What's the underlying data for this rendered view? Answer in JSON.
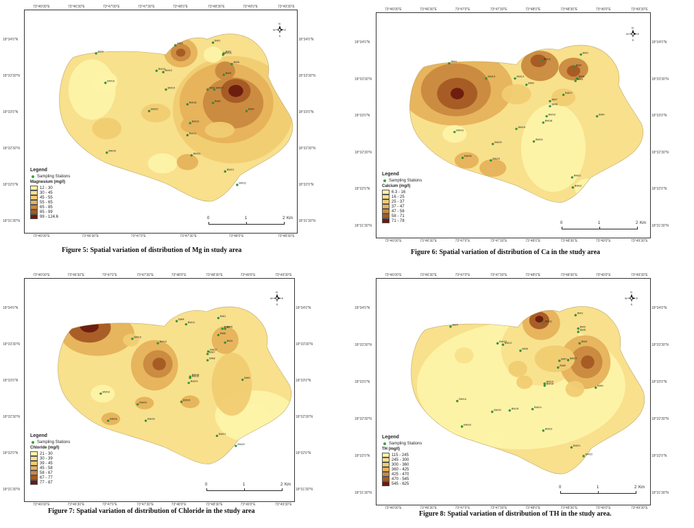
{
  "panels": [
    {
      "id": "mg",
      "caption": "Figure 5: Spatial variation of distribution of Mg in study area",
      "top_coords": [
        "73°46'00\"E",
        "73°46'30\"E",
        "73°47'00\"E",
        "73°47'30\"E",
        "73°48'0\"E",
        "73°48'30\"E",
        "73°49'0\"E",
        "73°49'30\"E"
      ],
      "bottom_coords": [
        "73°46'00\"E",
        "73°46'30\"E",
        "73°47'0\"E",
        "73°47'30\"E",
        "73°48'0\"E",
        "73°48'30\"E"
      ],
      "left_coords": [
        "18°34'0\"N",
        "18°33'30\"N",
        "18°33'0\"N",
        "18°32'30\"N",
        "18°32'0\"N",
        "18°31'30\"N"
      ],
      "right_coords": [
        "18°34'0\"N",
        "18°33'30\"N",
        "18°33'0\"N",
        "18°32'30\"N",
        "18°32'0\"N",
        "18°31'30\"N"
      ],
      "legend_title": "Legend",
      "stations_label": "Sampling Stations",
      "param_label": "Magnesium (mg/l)",
      "classes": [
        "12 - 30",
        "30 - 45",
        "45 - 55",
        "55 - 65",
        "65 - 85",
        "85 - 99",
        "99 - 124.6"
      ],
      "colors": [
        "#fdf3a8",
        "#f8e08c",
        "#f1cc72",
        "#e6b25b",
        "#c98a3f",
        "#a55a24",
        "#6a1a0e"
      ],
      "scale": [
        "0",
        "1",
        "2",
        "Km"
      ],
      "stations": [
        "BW4",
        "BW13",
        "BW16",
        "BW12",
        "BW10",
        "BW11",
        "BW27",
        "BW24",
        "BW5",
        "BW20",
        "BW26",
        "BW15",
        "BW6",
        "BW7",
        "BW18",
        "BW23",
        "BW21",
        "BW22",
        "BW1",
        "BW2",
        "BW3",
        "BW8",
        "BW9"
      ]
    },
    {
      "id": "ca",
      "caption": "Figure 6: Spatial variation of distribution of Ca in the study area",
      "top_coords": [
        "73°46'00\"E",
        "73°46'30\"E",
        "73°47'0\"E",
        "73°47'30\"E",
        "73°48'0\"E",
        "73°48'30\"E",
        "73°49'0\"E",
        "73°49'30\"E"
      ],
      "bottom_coords": [
        "73°46'00\"E",
        "73°46'30\"E",
        "73°47'0\"E",
        "73°47'30\"E",
        "73°48'0\"E",
        "73°48'30\"E",
        "73°49'0\"E",
        "73°49'30\"E"
      ],
      "left_coords": [
        "18°34'0\"N",
        "18°33'30\"N",
        "18°33'0\"N",
        "18°32'30\"N",
        "18°32'0\"N",
        "18°31'30\"N"
      ],
      "right_coords": [
        "18°34'0\"N",
        "18°33'30\"N",
        "18°33'0\"N",
        "18°32'30\"N",
        "18°32'0\"N",
        "18°31'30\"N"
      ],
      "legend_title": "Legend",
      "stations_label": "Sampling Stations",
      "param_label": "Calcium (mg/l)",
      "classes": [
        "6.3 - 16",
        "16 - 25",
        "25 - 37",
        "37 - 47",
        "47 - 58",
        "58 - 71",
        "71 - 78"
      ],
      "colors": [
        "#fdf3a8",
        "#f8e08c",
        "#f1cc72",
        "#e6b25b",
        "#c98a3f",
        "#a55a24",
        "#6a1a0e"
      ],
      "scale": [
        "0",
        "1",
        "2",
        "Km"
      ],
      "stations": [
        "BW4",
        "BW13",
        "BW16",
        "BW12",
        "BW10",
        "BW11",
        "BW27",
        "BW24",
        "BW5",
        "BW20",
        "BW26",
        "BW15",
        "BW6",
        "BW7",
        "BW18",
        "BW23",
        "BW21",
        "BW22",
        "BW1",
        "BW2",
        "BW3",
        "BW8",
        "BW9"
      ]
    },
    {
      "id": "cl",
      "caption": "Figure 7: Spatial variation of distribution of Chloride in the study area",
      "top_coords": [
        "73°46'00\"E",
        "73°46'30\"E",
        "73°47'0\"E",
        "73°47'30\"E",
        "73°48'0\"E",
        "73°48'30\"E",
        "73°49'0\"E",
        "73°49'30\"E"
      ],
      "bottom_coords": [
        "73°46'00\"E",
        "73°46'30\"E",
        "73°47'0\"E",
        "73°47'30\"E",
        "73°48'0\"E",
        "73°48'30\"E",
        "73°49'0\"E",
        "73°49'30\"E"
      ],
      "left_coords": [
        "18°34'0\"N",
        "18°33'30\"N",
        "18°33'0\"N",
        "18°32'30\"N",
        "18°32'0\"N",
        "18°31'30\"N"
      ],
      "right_coords": [
        "18°34'0\"N",
        "18°33'30\"N",
        "18°33'0\"N",
        "18°32'30\"N",
        "18°32'0\"N",
        "18°31'30\"N"
      ],
      "legend_title": "Legend",
      "stations_label": "Sampling Stations",
      "param_label": "Chloride (mg/l)",
      "classes": [
        "21 - 30",
        "30 - 39",
        "39 - 45",
        "45 - 58",
        "58 - 67",
        "67 - 77",
        "77 - 87"
      ],
      "colors": [
        "#fdf3a8",
        "#f8e08c",
        "#f1cc72",
        "#e6b25b",
        "#c98a3f",
        "#a55a24",
        "#6a1a0e"
      ],
      "scale": [
        "0",
        "1",
        "2",
        "Km"
      ],
      "stations": [
        "BW4",
        "BW13",
        "BW16",
        "BW12",
        "BW10",
        "BW11",
        "BW27",
        "BW24",
        "BW5",
        "BW20",
        "BW26",
        "BW15",
        "BW6",
        "BW7",
        "BW18",
        "BW23",
        "BW21",
        "BW22",
        "BW1",
        "BW2",
        "BW3",
        "BW8",
        "BW9"
      ]
    },
    {
      "id": "th",
      "caption": "Figure 8: Spatial variation of distribution of TH in the study area.",
      "top_coords": [
        "73°46'00\"E",
        "73°46'30\"E",
        "73°47'0\"E",
        "73°47'30\"E",
        "73°48'0\"E",
        "73°48'30\"E",
        "73°49'0\"E",
        "73°49'30\"E"
      ],
      "bottom_coords": [
        "73°46'00\"E",
        "73°46'30\"E",
        "73°47'0\"E",
        "73°47'30\"E",
        "73°48'0\"E",
        "73°48'30\"E",
        "73°49'0\"E",
        "73°49'30\"E"
      ],
      "left_coords": [
        "18°34'0\"N",
        "18°33'30\"N",
        "18°33'0\"N",
        "18°32'30\"N",
        "18°32'0\"N",
        "18°31'30\"N"
      ],
      "right_coords": [
        "18°34'0\"N",
        "18°33'30\"N",
        "18°33'0\"N",
        "18°32'30\"N",
        "18°32'0\"N",
        "18°31'30\"N"
      ],
      "legend_title": "Legend",
      "stations_label": "Sampling Stations",
      "param_label": "TH (mg/l)",
      "classes": [
        "115 - 245",
        "245 - 300",
        "300 - 360",
        "360 - 425",
        "425 - 470",
        "470 - 545",
        "545 - 625"
      ],
      "colors": [
        "#fdf3a8",
        "#f8e08c",
        "#f1cc72",
        "#e6b25b",
        "#c98a3f",
        "#a55a24",
        "#6a1a0e"
      ],
      "scale": [
        "0",
        "1",
        "2",
        "Km"
      ],
      "stations": [
        "BW4",
        "BW13",
        "BW16",
        "BW12",
        "BW10",
        "BW11",
        "BW27",
        "BW24",
        "BW5",
        "BW20",
        "BW26",
        "BW15",
        "BW6",
        "BW7",
        "BW18",
        "BW23",
        "BW21",
        "BW22",
        "BW1",
        "BW2",
        "BW3",
        "BW8",
        "BW9"
      ]
    }
  ],
  "north_labels": {
    "n": "N",
    "w": "W",
    "e": "E",
    "s": "S"
  }
}
